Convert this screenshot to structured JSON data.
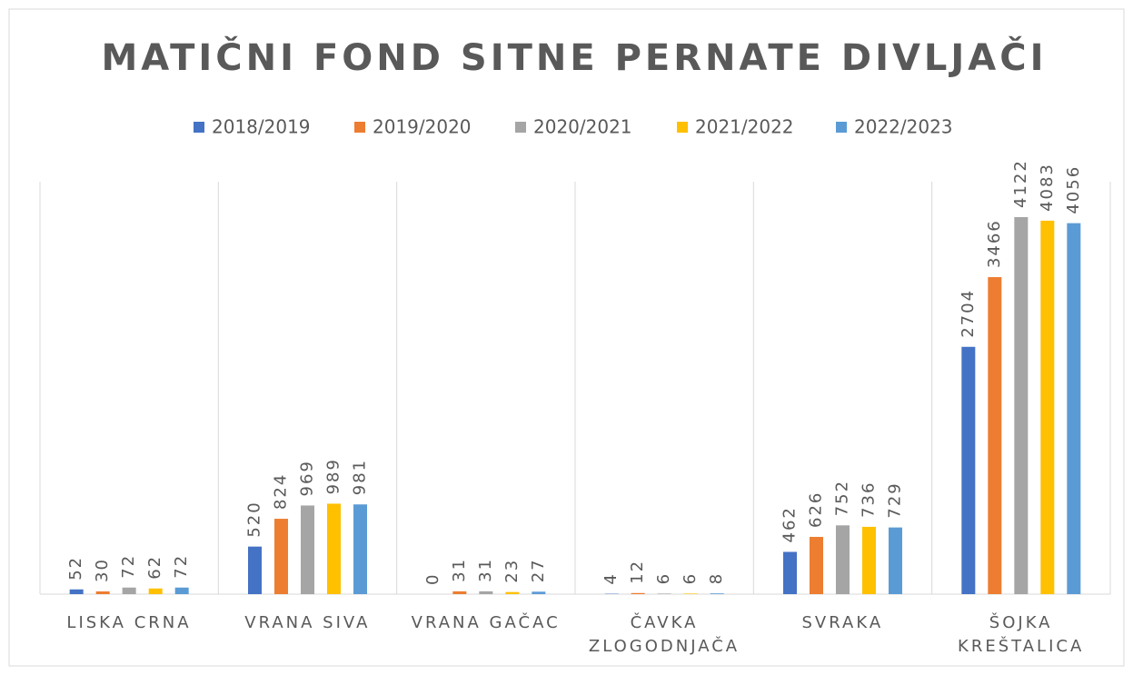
{
  "chart_data": {
    "type": "bar",
    "title": "MATIČNI FOND SITNE PERNATE DIVLJAČI",
    "categories": [
      "LISKA CRNA",
      "VRANA SIVA",
      "VRANA GAČAC",
      "ČAVKA\nZLOGODNJAČA",
      "SVRAKA",
      "ŠOJKA\nKREŠTALICA"
    ],
    "series": [
      {
        "name": "2018/2019",
        "color": "#4472c4",
        "values": [
          52,
          520,
          0,
          4,
          462,
          2704
        ]
      },
      {
        "name": "2019/2020",
        "color": "#ed7d31",
        "values": [
          30,
          824,
          31,
          12,
          626,
          3466
        ]
      },
      {
        "name": "2020/2021",
        "color": "#a5a5a5",
        "values": [
          72,
          969,
          31,
          6,
          752,
          4122
        ]
      },
      {
        "name": "2021/2022",
        "color": "#ffc000",
        "values": [
          62,
          989,
          23,
          6,
          736,
          4083
        ]
      },
      {
        "name": "2022/2023",
        "color": "#5b9bd5",
        "values": [
          72,
          981,
          27,
          8,
          729,
          4056
        ]
      }
    ],
    "legend": "top"
  }
}
